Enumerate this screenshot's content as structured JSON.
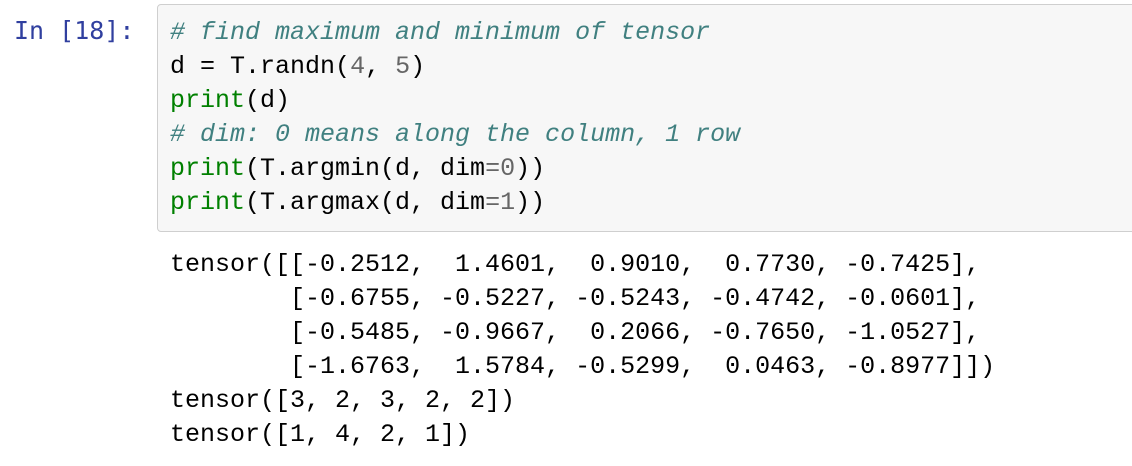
{
  "cell": {
    "prompt": "In [18]:",
    "code": {
      "comment1": "# find maximum and minimum of tensor",
      "line2": {
        "var": "d",
        "eq": " = ",
        "call": "T.randn(",
        "n1": "4",
        "sep": ", ",
        "n2": "5",
        "close": ")"
      },
      "line3": {
        "fn": "print",
        "args": "(d)"
      },
      "comment2": "# dim: 0 means along the column, 1 row",
      "line5": {
        "fn": "print",
        "open": "(T.argmin(d, dim",
        "op": "=",
        "num": "0",
        "close": "))"
      },
      "line6": {
        "fn": "print",
        "open": "(T.argmax(d, dim",
        "op": "=",
        "num": "1",
        "close": "))"
      }
    },
    "output": [
      "tensor([[-0.2512,  1.4601,  0.9010,  0.7730, -0.7425],",
      "        [-0.6755, -0.5227, -0.5243, -0.4742, -0.0601],",
      "        [-0.5485, -0.9667,  0.2066, -0.7650, -1.0527],",
      "        [-1.6763,  1.5784, -0.5299,  0.0463, -0.8977]])",
      "tensor([3, 2, 3, 2, 2])",
      "tensor([1, 4, 2, 1])"
    ]
  }
}
